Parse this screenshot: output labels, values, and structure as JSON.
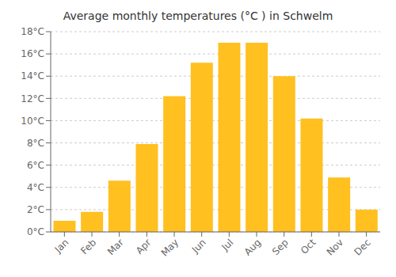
{
  "chart_data": {
    "type": "bar",
    "title": "Average monthly temperatures (°C ) in Schwelm",
    "categories": [
      "Jan",
      "Feb",
      "Mar",
      "Apr",
      "May",
      "Jun",
      "Jul",
      "Aug",
      "Sep",
      "Oct",
      "Nov",
      "Dec"
    ],
    "values": [
      1.0,
      1.8,
      4.6,
      7.9,
      12.2,
      15.2,
      17.0,
      17.0,
      14.0,
      10.2,
      4.9,
      2.0
    ],
    "color": "#FFC020",
    "ylim": [
      0,
      18
    ],
    "yticks": [
      {
        "value": 0,
        "label": "0°C"
      },
      {
        "value": 2,
        "label": "2°C"
      },
      {
        "value": 4,
        "label": "4°C"
      },
      {
        "value": 6,
        "label": "6°C"
      },
      {
        "value": 8,
        "label": "8°C"
      },
      {
        "value": 10,
        "label": "10°C"
      },
      {
        "value": 12,
        "label": "12°C"
      },
      {
        "value": 14,
        "label": "14°C"
      },
      {
        "value": 16,
        "label": "16°C"
      },
      {
        "value": 18,
        "label": "18°C"
      }
    ],
    "grid": true
  }
}
